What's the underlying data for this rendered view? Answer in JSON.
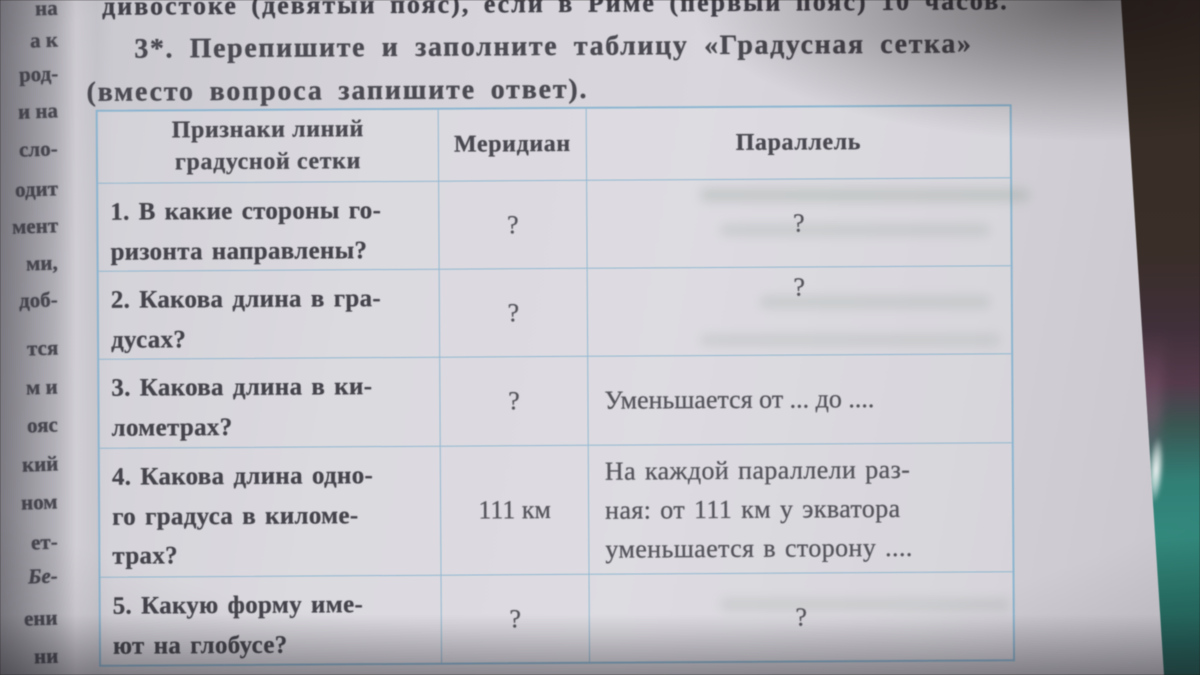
{
  "page": {
    "top_cutoff_line": "дивостоке (девятый пояс), если в Риме (первый пояс) 10 часов.",
    "task_line_1": "3*. Перепишите и заполните таблицу «Градусная сетка»",
    "task_line_2": "(вместо вопроса запишите ответ)."
  },
  "spine_fragments": [
    "на",
    "а к",
    "род-",
    "и на",
    "сло-",
    "одит",
    "мент",
    "ми,",
    "доб-",
    "тся",
    "м и",
    "ояс",
    "кий",
    "ном",
    "ет-",
    "Бе-",
    "ени",
    "ни"
  ],
  "table": {
    "headers": [
      "Признаки линий\nградусной сетки",
      "Меридиан",
      "Параллель"
    ],
    "rows": [
      {
        "feature": "1. В какие стороны го-\nризонта направлены?",
        "meridian": "?",
        "parallel": "?"
      },
      {
        "feature": "2. Какова длина в гра-\nдусах?",
        "meridian": "?",
        "parallel": "?"
      },
      {
        "feature": "3. Какова длина в ки-\nлометрах?",
        "meridian": "?",
        "parallel": "Уменьшается от ... до ...."
      },
      {
        "feature": "4. Какова длина одно-\nго градуса в киломе-\nтрах?",
        "meridian": "111 км",
        "parallel": "На каждой параллели раз-\nная: от 111 км у экватора\nуменьшается в сторону ...."
      },
      {
        "feature": "5. Какую форму име-\nют на глобусе?",
        "meridian": "?",
        "parallel": "?"
      }
    ]
  },
  "colors": {
    "paper": "#d6d4da",
    "table_border": "#7dafd0",
    "ink": "#46444c",
    "answer_ink": "#55535b",
    "background_top": "#382c25",
    "background_bottom": "#2f8a7d"
  }
}
